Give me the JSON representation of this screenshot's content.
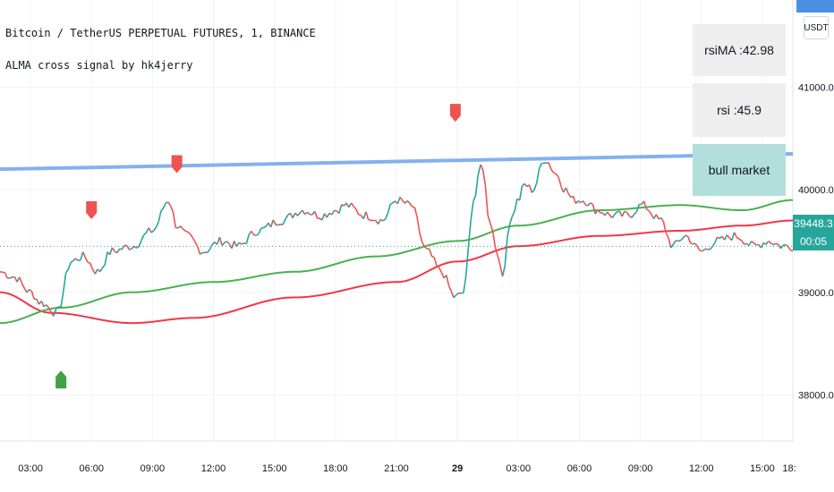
{
  "header": {
    "title": "Bitcoin / TetherUS PERPETUAL FUTURES, 1, BINANCE",
    "indicator": "ALMA cross signal by hk4jerry"
  },
  "panels": {
    "rsima": "rsiMA :42.98",
    "rsi": "rsi :45.9",
    "market": "bull market"
  },
  "currency_button": "USDT",
  "price_tag": {
    "price": "39448.3",
    "countdown": "00:05"
  },
  "colors": {
    "up": "#26a69a",
    "down": "#ef5350",
    "alma_fast": "#4caf50",
    "alma_slow": "#f23645",
    "trend": "#6ea3ec",
    "buy": "#43a047",
    "sell": "#ef5350",
    "panel_market": "#b2dfdb"
  },
  "chart_data": {
    "type": "line",
    "x_ticks": [
      "03:00",
      "06:00",
      "09:00",
      "12:00",
      "15:00",
      "18:00",
      "21:00",
      "29",
      "03:00",
      "06:00",
      "09:00",
      "12:00",
      "15:00",
      "18:"
    ],
    "y_ticks": [
      38000,
      39000,
      40000,
      41000
    ],
    "y_tick_labels": [
      "38000.0",
      "39000.0",
      "40000.0",
      "41000.0"
    ],
    "ylim": [
      37550,
      41850
    ],
    "x_range_hours": [
      1.5,
      40.5
    ],
    "price": {
      "x": [
        1.5,
        2.2,
        3.0,
        3.5,
        4.3,
        5.0,
        5.6,
        6.3,
        7.0,
        8.0,
        9.0,
        9.8,
        10.2,
        10.7,
        11.5,
        12.4,
        13.2,
        14.2,
        15.3,
        16.4,
        17.3,
        18.0,
        18.5,
        19.5,
        20.3,
        21.0,
        21.7,
        22.5,
        23.2,
        23.9,
        24.3,
        24.8,
        25.2,
        25.6,
        25.9,
        26.2,
        26.6,
        27.0,
        27.3,
        27.7,
        28.3,
        28.9,
        29.3,
        29.7,
        30.2,
        30.9,
        31.6,
        32.4,
        33.1,
        34.0,
        34.6,
        35.2,
        36.0,
        36.8,
        37.7,
        38.6,
        39.3,
        40.0,
        40.5
      ],
      "y": [
        39200,
        39150,
        39000,
        38900,
        38800,
        39300,
        39350,
        39200,
        39400,
        39450,
        39600,
        39900,
        39650,
        39550,
        39400,
        39500,
        39450,
        39600,
        39700,
        39800,
        39750,
        39800,
        39850,
        39750,
        39700,
        39900,
        39850,
        39400,
        39200,
        38950,
        39000,
        39900,
        40250,
        39700,
        39450,
        39150,
        39700,
        39900,
        40050,
        40000,
        40300,
        40150,
        40000,
        39900,
        39900,
        39800,
        39750,
        39750,
        39850,
        39700,
        39450,
        39550,
        39400,
        39500,
        39550,
        39450,
        39500,
        39450,
        39448
      ]
    },
    "alma_fast": {
      "x": [
        1.5,
        4.5,
        8.0,
        12.0,
        16.0,
        20.0,
        24.0,
        27.0,
        31.0,
        35.0,
        38.0,
        40.5
      ],
      "y": [
        38700,
        38850,
        39000,
        39100,
        39200,
        39350,
        39500,
        39650,
        39800,
        39850,
        39800,
        39900
      ]
    },
    "alma_slow": {
      "x": [
        1.5,
        4.0,
        8.0,
        11.0,
        16.0,
        21.0,
        24.0,
        27.0,
        31.0,
        35.0,
        38.0,
        40.5
      ],
      "y": [
        39000,
        38800,
        38700,
        38750,
        38950,
        39100,
        39300,
        39450,
        39550,
        39600,
        39650,
        39700
      ]
    },
    "trend_line": {
      "x": [
        1.5,
        40.5
      ],
      "y": [
        40200,
        40350
      ]
    },
    "signals": [
      {
        "type": "buy",
        "x": 4.5,
        "y": 38150
      },
      {
        "type": "sell",
        "x": 6.0,
        "y": 39800
      },
      {
        "type": "sell",
        "x": 10.2,
        "y": 40250
      },
      {
        "type": "sell",
        "x": 23.9,
        "y": 40750
      }
    ],
    "last_price": 39448.3,
    "grid": true
  }
}
